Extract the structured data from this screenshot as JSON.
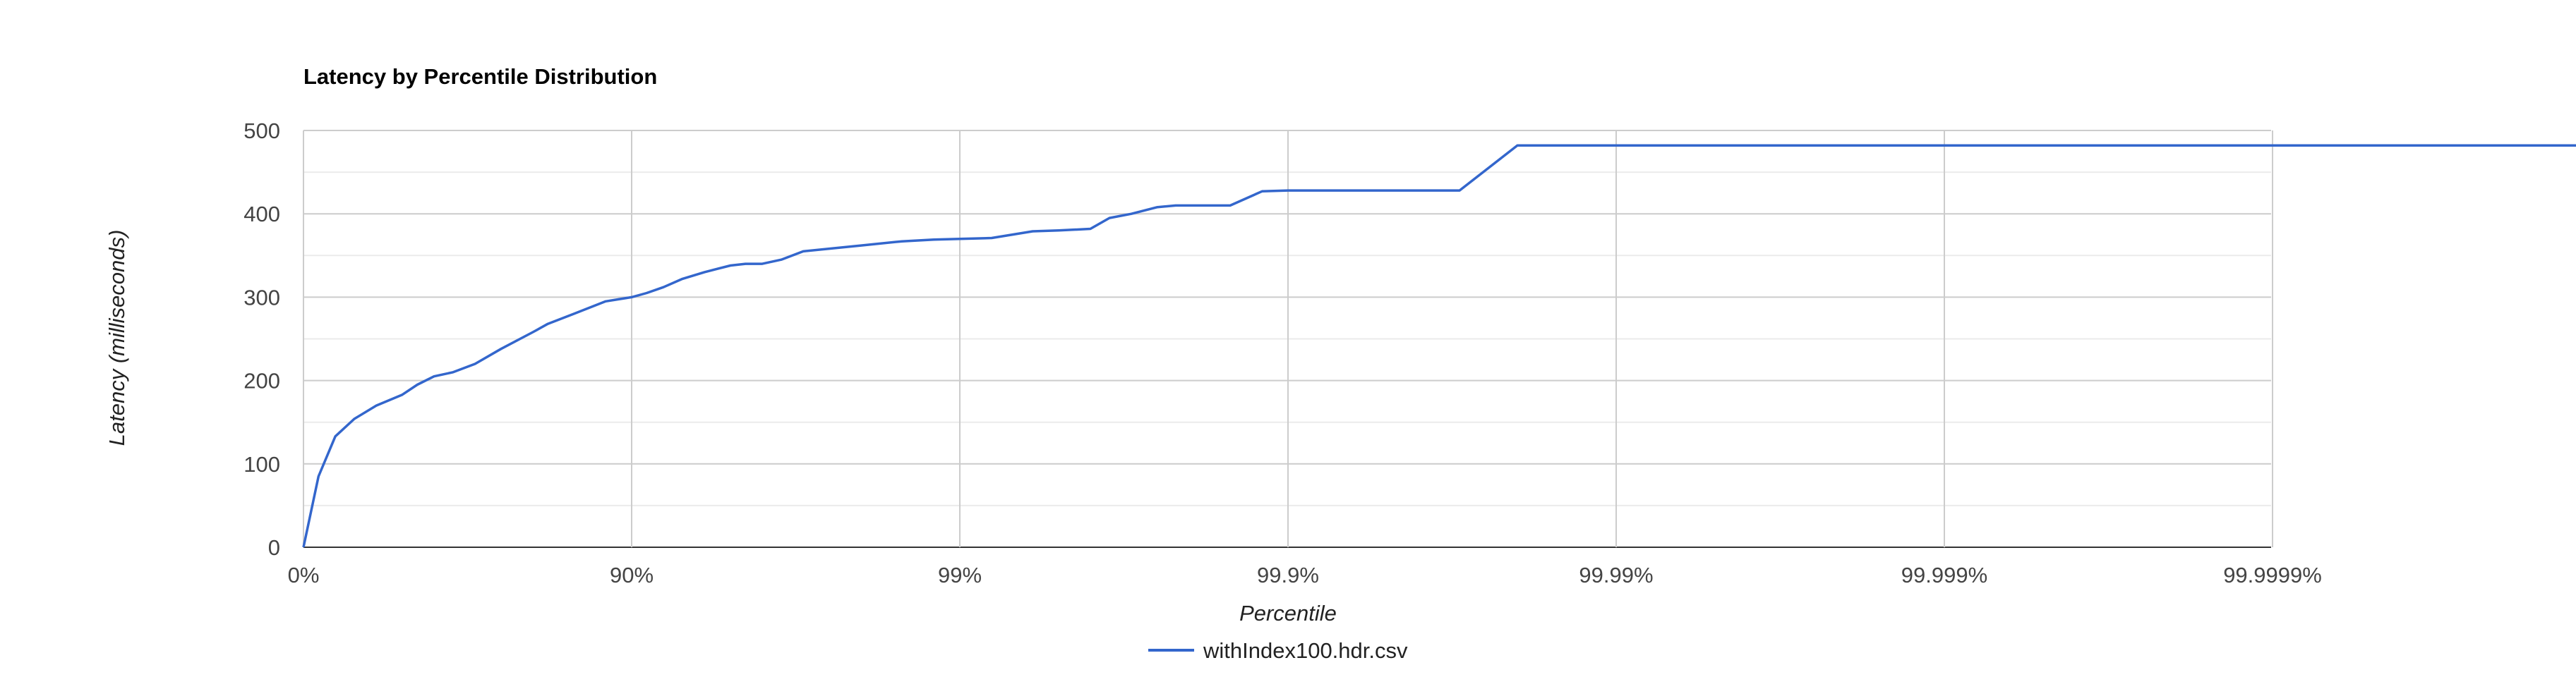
{
  "chart_data": {
    "type": "line",
    "title": "Latency by Percentile Distribution",
    "xlabel": "Percentile",
    "ylabel": "Latency (milliseconds)",
    "x_scale": "log-percentile (1/(1-p))",
    "x_tick_labels": [
      "0%",
      "90%",
      "99%",
      "99.9%",
      "99.99%",
      "99.999%",
      "99.9999%"
    ],
    "y_tick_labels": [
      "0",
      "100",
      "200",
      "300",
      "400",
      "500"
    ],
    "ylim": [
      0,
      500
    ],
    "grid": true,
    "legend_position": "bottom",
    "series": [
      {
        "name": "withIndex100.hdr.csv",
        "color": "#3366cc",
        "x": [
          0,
          10,
          20,
          30,
          40,
          50,
          55,
          60,
          65,
          70,
          75,
          80,
          82,
          85,
          88,
          90,
          91,
          92,
          93,
          94,
          95,
          95.5,
          96,
          96.5,
          97,
          98,
          98.5,
          98.8,
          99,
          99.2,
          99.4,
          99.5,
          99.6,
          99.65,
          99.7,
          99.75,
          99.78,
          99.8,
          99.85,
          99.88,
          99.9,
          99.95,
          99.97,
          99.98,
          100
        ],
        "y": [
          0,
          85,
          133,
          154,
          170,
          183,
          195,
          205,
          210,
          220,
          238,
          258,
          268,
          280,
          295,
          300,
          305,
          312,
          322,
          330,
          338,
          340,
          340,
          345,
          355,
          362,
          367,
          369,
          370,
          371,
          379,
          380,
          382,
          395,
          400,
          408,
          410,
          410,
          410,
          427,
          428,
          428,
          428,
          482,
          482
        ]
      }
    ]
  }
}
